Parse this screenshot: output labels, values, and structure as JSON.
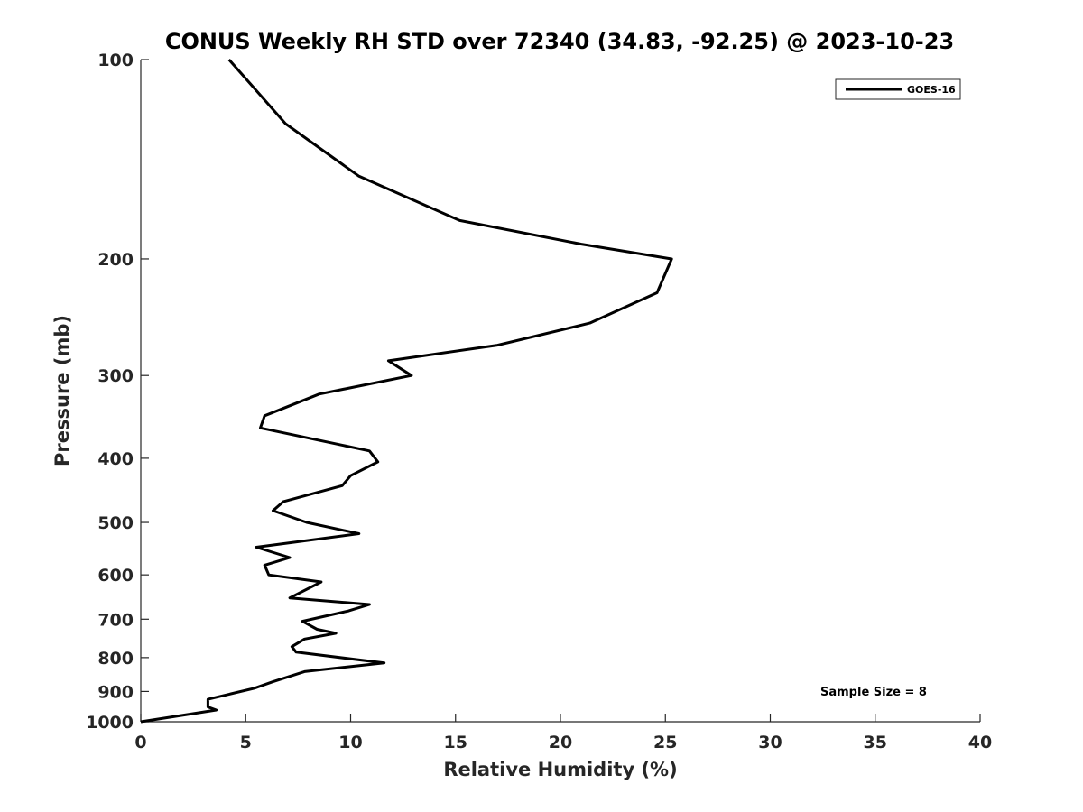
{
  "chart_data": {
    "type": "line",
    "title": "CONUS Weekly RH STD over 72340 (34.83, -92.25) @ 2023-10-23",
    "xlabel": "Relative Humidity (%)",
    "ylabel": "Pressure (mb)",
    "xlim": [
      0,
      40
    ],
    "ylim": [
      100,
      1000
    ],
    "y_scale": "log",
    "y_reversed": true,
    "x_ticks": [
      0,
      5,
      10,
      15,
      20,
      25,
      30,
      35,
      40
    ],
    "x_tick_labels": [
      "0",
      "5",
      "10",
      "15",
      "20",
      "25",
      "30",
      "35",
      "40"
    ],
    "y_ticks": [
      100,
      200,
      300,
      400,
      500,
      600,
      700,
      800,
      900,
      1000
    ],
    "y_tick_labels": [
      "100",
      "200",
      "300",
      "400",
      "500",
      "600",
      "700",
      "800",
      "900",
      "1000"
    ],
    "grid": false,
    "legend_position": "top-right",
    "series": [
      {
        "name": "GOES-16",
        "color": "#000000",
        "points": [
          [
            4.2,
            100
          ],
          [
            6.9,
            125
          ],
          [
            10.4,
            150
          ],
          [
            15.2,
            175
          ],
          [
            21.0,
            190
          ],
          [
            25.3,
            200
          ],
          [
            24.6,
            225
          ],
          [
            21.4,
            250
          ],
          [
            17.0,
            270
          ],
          [
            11.8,
            285
          ],
          [
            12.9,
            300
          ],
          [
            8.5,
            320
          ],
          [
            5.9,
            345
          ],
          [
            5.7,
            360
          ],
          [
            10.9,
            390
          ],
          [
            11.3,
            405
          ],
          [
            10.0,
            425
          ],
          [
            9.6,
            440
          ],
          [
            6.8,
            465
          ],
          [
            6.3,
            480
          ],
          [
            7.9,
            500
          ],
          [
            10.4,
            520
          ],
          [
            5.5,
            545
          ],
          [
            7.1,
            565
          ],
          [
            5.9,
            580
          ],
          [
            6.1,
            600
          ],
          [
            8.6,
            615
          ],
          [
            7.1,
            650
          ],
          [
            10.9,
            665
          ],
          [
            9.9,
            680
          ],
          [
            7.7,
            705
          ],
          [
            8.4,
            725
          ],
          [
            9.3,
            735
          ],
          [
            7.8,
            750
          ],
          [
            7.2,
            770
          ],
          [
            7.4,
            785
          ],
          [
            11.6,
            815
          ],
          [
            7.8,
            840
          ],
          [
            6.3,
            870
          ],
          [
            5.4,
            890
          ],
          [
            3.2,
            925
          ],
          [
            3.2,
            950
          ],
          [
            3.6,
            960
          ],
          [
            0.0,
            1000
          ]
        ]
      }
    ],
    "annotations": [
      "Sample Size = 8"
    ]
  }
}
